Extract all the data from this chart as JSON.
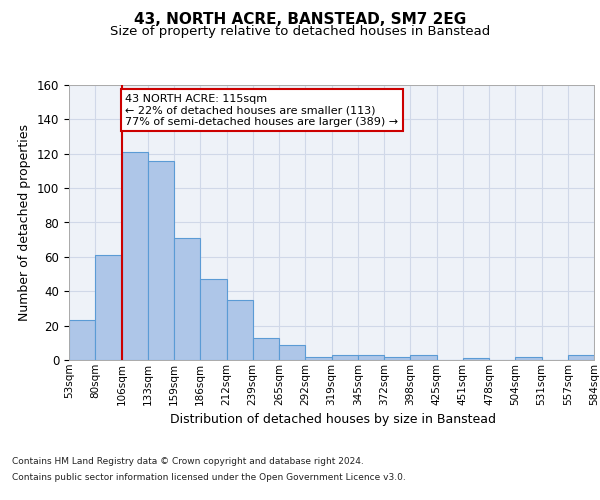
{
  "title": "43, NORTH ACRE, BANSTEAD, SM7 2EG",
  "subtitle": "Size of property relative to detached houses in Banstead",
  "xlabel": "Distribution of detached houses by size in Banstead",
  "ylabel": "Number of detached properties",
  "bar_values": [
    23,
    61,
    121,
    116,
    71,
    47,
    35,
    13,
    9,
    2,
    3,
    3,
    2,
    3,
    0,
    1,
    0,
    2,
    0,
    3
  ],
  "bin_labels": [
    "53sqm",
    "80sqm",
    "106sqm",
    "133sqm",
    "159sqm",
    "186sqm",
    "212sqm",
    "239sqm",
    "265sqm",
    "292sqm",
    "319sqm",
    "345sqm",
    "372sqm",
    "398sqm",
    "425sqm",
    "451sqm",
    "478sqm",
    "504sqm",
    "531sqm",
    "557sqm",
    "584sqm"
  ],
  "bar_color": "#aec6e8",
  "bar_edge_color": "#5b9bd5",
  "grid_color": "#d0d8e8",
  "background_color": "#eef2f8",
  "property_bin_index": 2,
  "red_line_color": "#cc0000",
  "annotation_text": "43 NORTH ACRE: 115sqm\n← 22% of detached houses are smaller (113)\n77% of semi-detached houses are larger (389) →",
  "annotation_box_color": "#ffffff",
  "annotation_box_edge": "#cc0000",
  "ylim": [
    0,
    160
  ],
  "yticks": [
    0,
    20,
    40,
    60,
    80,
    100,
    120,
    140,
    160
  ],
  "footer_line1": "Contains HM Land Registry data © Crown copyright and database right 2024.",
  "footer_line2": "Contains public sector information licensed under the Open Government Licence v3.0."
}
